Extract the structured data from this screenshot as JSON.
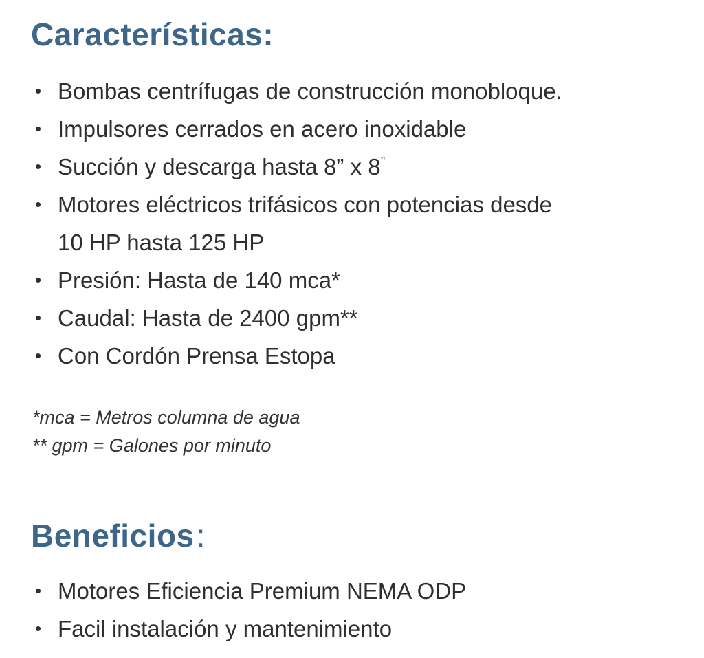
{
  "page": {
    "background_color": "#ffffff",
    "heading_color": "#3d6689",
    "body_text_color": "#2f2f2f"
  },
  "caracteristicas": {
    "title": "Características",
    "colon": ":",
    "items": [
      {
        "text": "Bombas centrífugas de construcción monobloque."
      },
      {
        "text": "Impulsores cerrados en acero inoxidable"
      },
      {
        "text": "Succión y descarga hasta 8” x 8",
        "sup": "”"
      },
      {
        "text": "Motores eléctricos trifásicos con potencias desde",
        "text2": "10 HP hasta 125 HP"
      },
      {
        "text": "Presión: Hasta de 140 mca*"
      },
      {
        "text": "Caudal: Hasta de 2400 gpm**"
      },
      {
        "text": "Con Cordón Prensa Estopa"
      }
    ],
    "footnotes": [
      "*mca = Metros columna de agua",
      "** gpm = Galones por minuto"
    ]
  },
  "beneficios": {
    "title": "Beneficios",
    "colon": ":",
    "items": [
      {
        "text": "Motores Eficiencia Premium NEMA ODP"
      },
      {
        "text": "Facil instalación y mantenimiento"
      }
    ]
  }
}
